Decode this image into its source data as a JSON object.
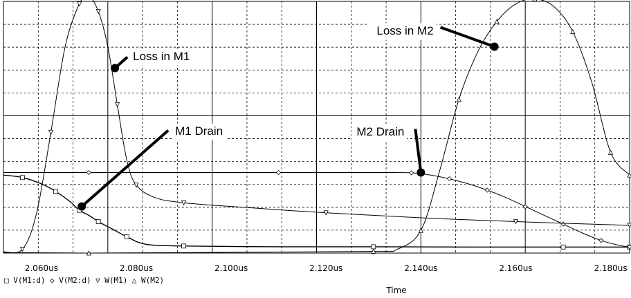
{
  "chart_data": {
    "type": "line",
    "xlabel": "Time",
    "ylabel": "",
    "xlim": [
      2.052,
      2.184
    ],
    "ylim": [
      0,
      10
    ],
    "grid": true,
    "x_ticks": [
      {
        "value": 2.06,
        "label": "2.060us"
      },
      {
        "value": 2.08,
        "label": "2.080us"
      },
      {
        "value": 2.1,
        "label": "2.100us"
      },
      {
        "value": 2.12,
        "label": "2.120us"
      },
      {
        "value": 2.14,
        "label": "2.140us"
      },
      {
        "value": 2.16,
        "label": "2.160us"
      },
      {
        "value": 2.18,
        "label": "2.180us"
      }
    ],
    "legend": [
      {
        "marker": "□",
        "label": "V(M1:d)"
      },
      {
        "marker": "◇",
        "label": "V(M2:d)"
      },
      {
        "marker": "▽",
        "label": "W(M1)"
      },
      {
        "marker": "△",
        "label": "W(M2)"
      }
    ],
    "series": [
      {
        "marker": "square",
        "x": [
          2.052,
          2.056,
          2.06,
          2.063,
          2.066,
          2.068,
          2.07,
          2.072,
          2.075,
          2.078,
          2.082,
          2.09,
          2.11,
          2.13,
          2.15,
          2.17,
          2.184
        ],
        "y": [
          3.1,
          3.0,
          2.75,
          2.45,
          2.05,
          1.7,
          1.5,
          1.25,
          0.95,
          0.65,
          0.35,
          0.28,
          0.25,
          0.25,
          0.24,
          0.24,
          0.24
        ]
      },
      {
        "marker": "diamond",
        "x": [
          2.052,
          2.07,
          2.09,
          2.11,
          2.13,
          2.138,
          2.142,
          2.146,
          2.15,
          2.154,
          2.158,
          2.162,
          2.166,
          2.17,
          2.174,
          2.178,
          2.182,
          2.184
        ],
        "y": [
          3.2,
          3.2,
          3.2,
          3.2,
          3.2,
          3.19,
          3.1,
          2.95,
          2.75,
          2.5,
          2.2,
          1.85,
          1.5,
          1.15,
          0.8,
          0.5,
          0.3,
          0.25
        ]
      },
      {
        "marker": "triangle-down",
        "x": [
          2.052,
          2.056,
          2.059,
          2.062,
          2.065,
          2.068,
          2.07,
          2.072,
          2.074,
          2.076,
          2.078,
          2.08,
          2.084,
          2.09,
          2.1,
          2.12,
          2.14,
          2.16,
          2.184
        ],
        "y": [
          0.05,
          0.15,
          1.6,
          4.8,
          8.2,
          9.9,
          10.2,
          9.6,
          8.2,
          5.9,
          3.7,
          2.7,
          2.2,
          2.0,
          1.85,
          1.6,
          1.4,
          1.25,
          1.1
        ]
      },
      {
        "marker": "triangle-up",
        "x": [
          2.052,
          2.07,
          2.1,
          2.13,
          2.135,
          2.14,
          2.144,
          2.148,
          2.152,
          2.156,
          2.16,
          2.164,
          2.168,
          2.172,
          2.176,
          2.18,
          2.184
        ],
        "y": [
          0.02,
          0.0,
          0.03,
          0.07,
          0.15,
          0.9,
          3.3,
          6.1,
          8.0,
          9.2,
          9.9,
          10.1,
          9.8,
          8.8,
          6.8,
          4.0,
          3.1
        ]
      }
    ],
    "annotations": [
      {
        "text": "Loss in M1",
        "x": 2.0755,
        "y": 7.35
      },
      {
        "text": "M1 Drain",
        "x": 2.0685,
        "y": 1.85
      },
      {
        "text": "Loss in M2",
        "x": 2.1555,
        "y": 8.2
      },
      {
        "text": "M2 Drain",
        "x": 2.14,
        "y": 3.2
      }
    ]
  }
}
